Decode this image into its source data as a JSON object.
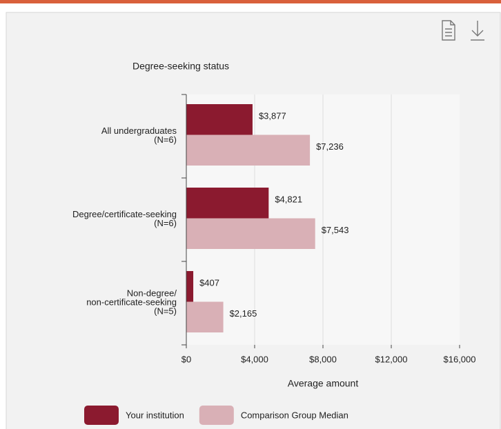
{
  "chart_data": {
    "type": "barh",
    "title": "Degree-seeking status",
    "categories": [
      [
        "All undergraduates",
        "(N=6)"
      ],
      [
        "Degree/certificate-seeking",
        "(N=6)"
      ],
      [
        "Non-degree/",
        "non-certificate-seeking",
        "(N=5)"
      ]
    ],
    "series": [
      {
        "name": "Your institution",
        "color": "#8b1a2f",
        "values": [
          3877,
          4821,
          407
        ],
        "value_labels": [
          "$3,877",
          "$4,821",
          "$407"
        ]
      },
      {
        "name": "Comparison Group Median",
        "color": "#d9b0b6",
        "values": [
          7236,
          7543,
          2165
        ],
        "value_labels": [
          "$7,236",
          "$7,543",
          "$2,165"
        ]
      }
    ],
    "xlabel": "Average amount",
    "xlim": [
      0,
      16000
    ],
    "xticks": [
      {
        "value": 0,
        "label": "$0"
      },
      {
        "value": 4000,
        "label": "$4,000"
      },
      {
        "value": 8000,
        "label": "$8,000"
      },
      {
        "value": 12000,
        "label": "$12,000"
      },
      {
        "value": 16000,
        "label": "$16,000"
      }
    ],
    "grid": true
  }
}
